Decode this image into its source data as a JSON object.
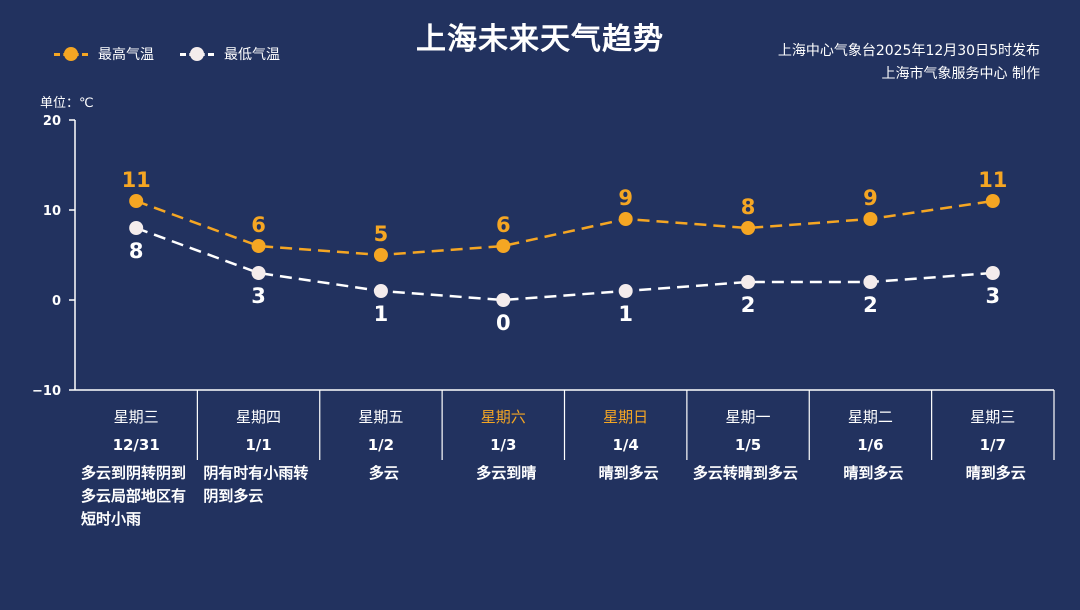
{
  "header": {
    "title": "上海未来天气趋势",
    "source_line1": "上海中心气象台2025年12月30日5时发布",
    "source_line2": "上海市气象服务中心  制作",
    "unit": "单位：℃"
  },
  "colors": {
    "background": "#22325f",
    "high": "#f5a623",
    "low": "#ffffff",
    "low_marker": "#f4ecec"
  },
  "chart_data": {
    "type": "line",
    "ylim": [
      -10,
      20
    ],
    "yticks": [
      20,
      10,
      0,
      -10
    ],
    "grid": false,
    "legend_position": "top-left",
    "categories": [
      "12/31",
      "1/1",
      "1/2",
      "1/3",
      "1/4",
      "1/5",
      "1/6",
      "1/7"
    ],
    "series": [
      {
        "name": "最高气温",
        "values": [
          11,
          6,
          5,
          6,
          9,
          8,
          9,
          11
        ]
      },
      {
        "name": "最低气温",
        "values": [
          8,
          3,
          1,
          0,
          1,
          2,
          2,
          3
        ]
      }
    ]
  },
  "days": [
    {
      "weekday": "星期三",
      "date": "12/31",
      "condition": "多云到阴转阴到多云局部地区有短时小雨",
      "weekend": false
    },
    {
      "weekday": "星期四",
      "date": "1/1",
      "condition": "阴有时有小雨转阴到多云",
      "weekend": false
    },
    {
      "weekday": "星期五",
      "date": "1/2",
      "condition": "多云",
      "weekend": false
    },
    {
      "weekday": "星期六",
      "date": "1/3",
      "condition": "多云到晴",
      "weekend": true
    },
    {
      "weekday": "星期日",
      "date": "1/4",
      "condition": "晴到多云",
      "weekend": true
    },
    {
      "weekday": "星期一",
      "date": "1/5",
      "condition": "多云转晴到多云",
      "weekend": false
    },
    {
      "weekday": "星期二",
      "date": "1/6",
      "condition": "晴到多云",
      "weekend": false
    },
    {
      "weekday": "星期三",
      "date": "1/7",
      "condition": "晴到多云",
      "weekend": false
    }
  ]
}
